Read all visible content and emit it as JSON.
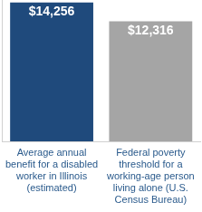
{
  "chart_data": {
    "type": "bar",
    "categories": [
      "Average annual benefit for a disabled worker in Illinois (estimated)",
      "Federal poverty threshold for a working-age person living alone (U.S. Census Bureau)"
    ],
    "values": [
      14256,
      12316
    ],
    "value_labels": [
      "$14,256",
      "$12,316"
    ],
    "colors": [
      "#1f4a7c",
      "#a5a5a5"
    ],
    "ylim": [
      0,
      14500
    ],
    "grid": false,
    "data_labels": true,
    "tick_labels": "x"
  }
}
